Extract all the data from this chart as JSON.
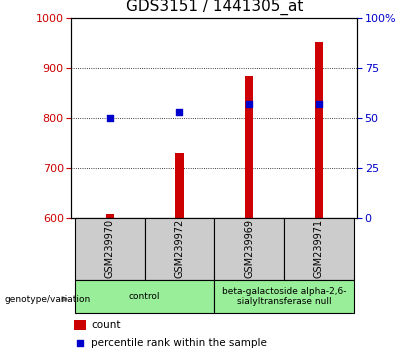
{
  "title": "GDS3151 / 1441305_at",
  "samples": [
    "GSM239970",
    "GSM239972",
    "GSM239969",
    "GSM239971"
  ],
  "bar_values": [
    608,
    730,
    884,
    952
  ],
  "percentile_values": [
    50,
    53,
    57,
    57
  ],
  "ylim_left": [
    600,
    1000
  ],
  "ylim_right": [
    0,
    100
  ],
  "yticks_left": [
    600,
    700,
    800,
    900,
    1000
  ],
  "yticks_right": [
    0,
    25,
    50,
    75,
    100
  ],
  "bar_color": "#cc0000",
  "percentile_color": "#0000cc",
  "bar_bottom": 600,
  "bar_width": 0.12,
  "groups": [
    {
      "label": "control",
      "indices": [
        0,
        1
      ],
      "color": "#99ee99"
    },
    {
      "label": "beta-galactoside alpha-2,6-\nsialyltransferase null",
      "indices": [
        2,
        3
      ],
      "color": "#99ee99"
    }
  ],
  "genotype_label": "genotype/variation",
  "legend_count_label": "count",
  "legend_percentile_label": "percentile rank within the sample",
  "title_fontsize": 11,
  "axis_color_left": "#cc0000",
  "axis_color_right": "#0000cc",
  "sample_box_color": "#cccccc",
  "plot_bg_color": "#ffffff"
}
